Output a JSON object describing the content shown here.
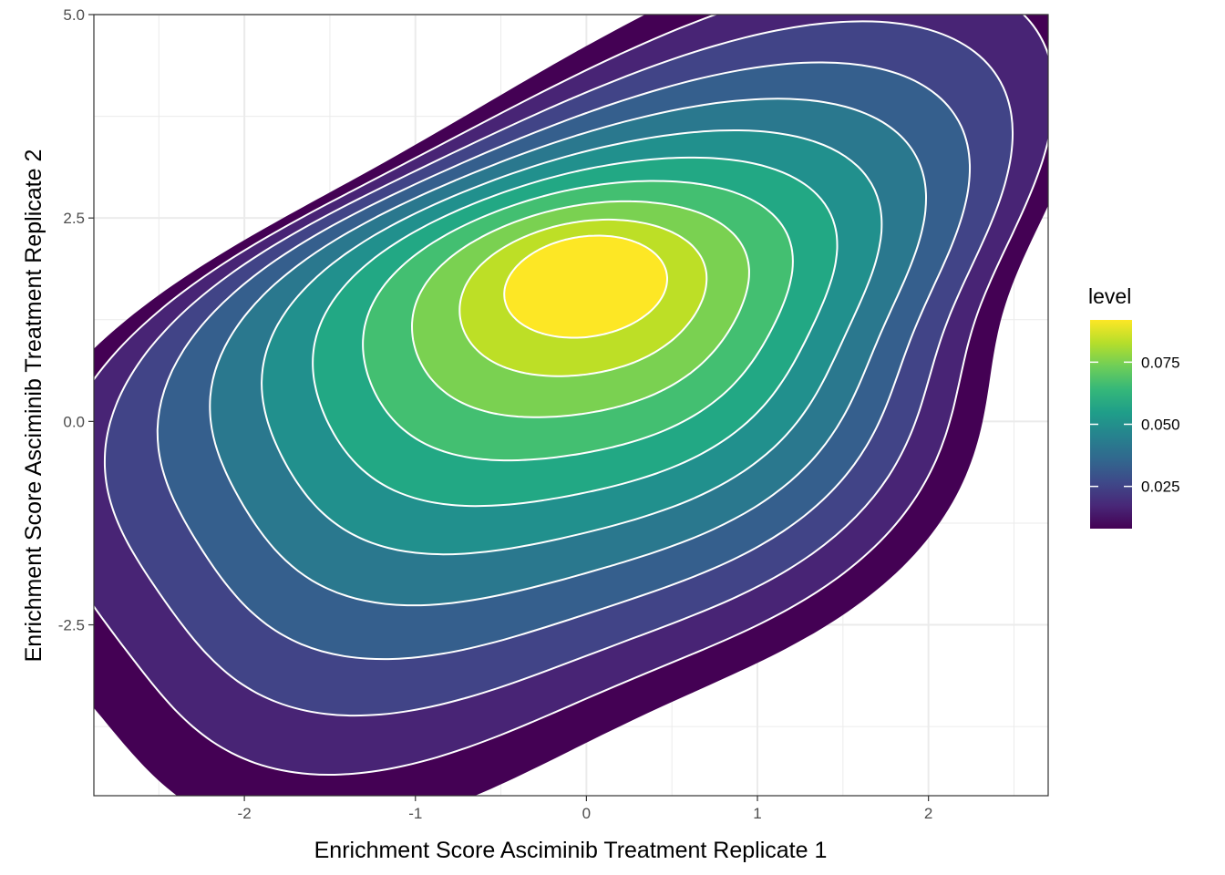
{
  "chart_data": {
    "type": "density_2d_filled",
    "title": "",
    "xlabel": "Enrichment Score Asciminib Treatment Replicate 1",
    "ylabel": "Enrichment Score Asciminib Treatment Replicate 2",
    "xlim": [
      -2.88,
      2.7
    ],
    "ylim": [
      -4.6,
      5.0
    ],
    "x_ticks": [
      {
        "value": -2,
        "label": "-2"
      },
      {
        "value": -1,
        "label": "-1"
      },
      {
        "value": 0,
        "label": "0"
      },
      {
        "value": 1,
        "label": "1"
      },
      {
        "value": 2,
        "label": "2"
      }
    ],
    "y_ticks": [
      {
        "value": -2.5,
        "label": "-2.5"
      },
      {
        "value": 0,
        "label": "0.0"
      },
      {
        "value": 2.5,
        "label": "2.5"
      },
      {
        "value": 5.0,
        "label": "5.0"
      }
    ],
    "grid": true,
    "contour_line_color": "#ffffff",
    "density_peak": {
      "x": -0.1,
      "y": 1.6
    },
    "levels": [
      {
        "level": 1,
        "color": "#440154"
      },
      {
        "level": 2,
        "color": "#482475"
      },
      {
        "level": 3,
        "color": "#414487"
      },
      {
        "level": 4,
        "color": "#355f8d"
      },
      {
        "level": 5,
        "color": "#2a788e"
      },
      {
        "level": 6,
        "color": "#21908d"
      },
      {
        "level": 7,
        "color": "#22a884"
      },
      {
        "level": 8,
        "color": "#43bf71"
      },
      {
        "level": 9,
        "color": "#7ad151"
      },
      {
        "level": 10,
        "color": "#bddf26"
      },
      {
        "level": 11,
        "color": "#fde725"
      }
    ],
    "legend": {
      "title": "level",
      "position": "right",
      "colorbar": [
        "#440154",
        "#482878",
        "#3e4989",
        "#31688e",
        "#26828e",
        "#1f9e89",
        "#35b779",
        "#6ece58",
        "#b5de2b",
        "#fde725"
      ],
      "range": [
        0.008,
        0.092
      ],
      "ticks": [
        {
          "value": 0.025,
          "label": "0.025"
        },
        {
          "value": 0.05,
          "label": "0.050"
        },
        {
          "value": 0.075,
          "label": "0.075"
        }
      ]
    }
  }
}
